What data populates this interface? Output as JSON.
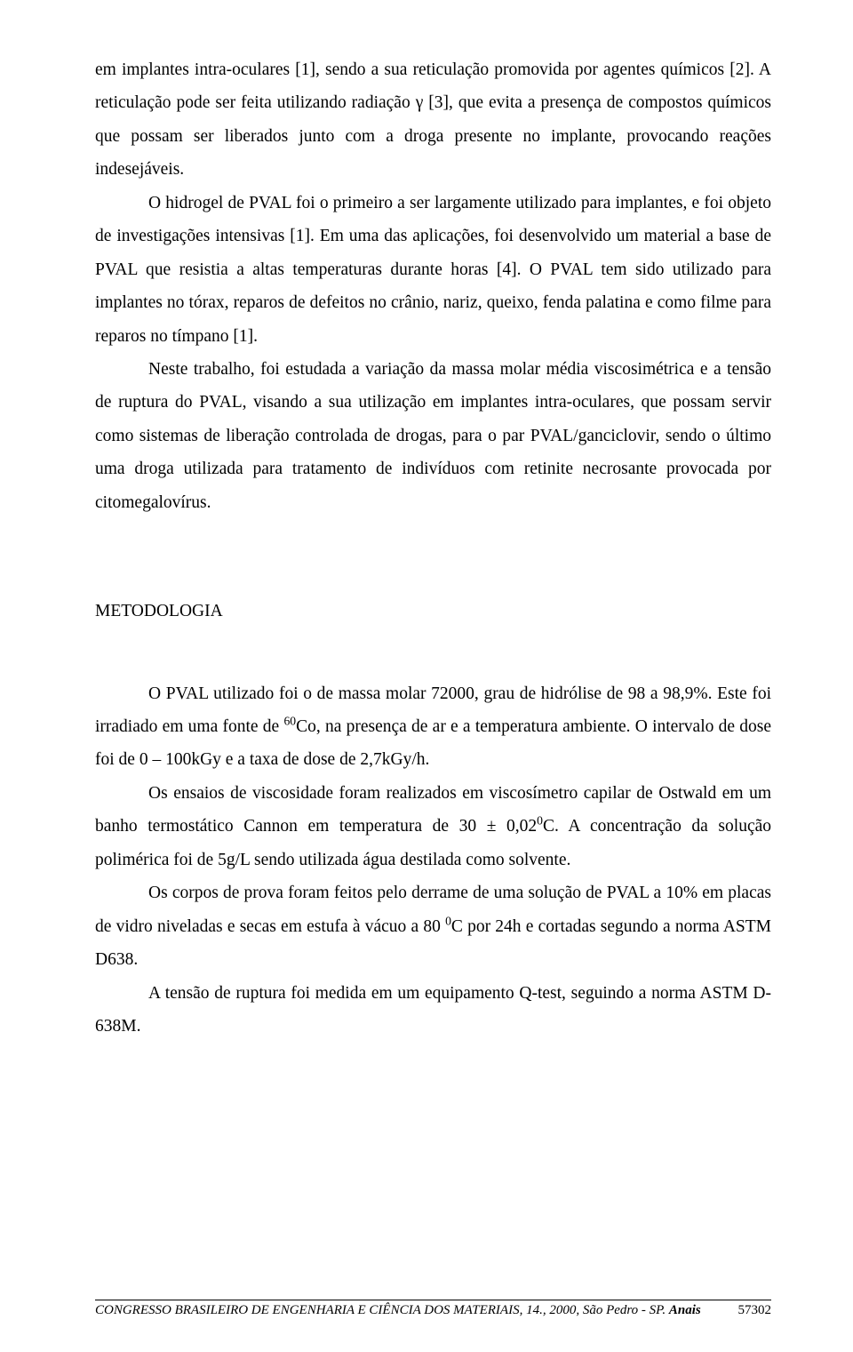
{
  "paragraphs": {
    "p1": "em implantes intra-oculares [1], sendo a sua reticulação promovida por agentes químicos [2]. A reticulação pode ser feita utilizando radiação γ [3], que evita a presença de compostos químicos que possam ser liberados junto com a droga presente no implante, provocando reações indesejáveis.",
    "p2": "O hidrogel de PVAL foi o primeiro a ser largamente utilizado para implantes, e foi objeto de investigações intensivas [1]. Em uma das aplicações, foi desenvolvido um material a base de PVAL que resistia a altas temperaturas durante horas [4]. O PVAL tem sido utilizado para implantes no tórax, reparos de defeitos no crânio, nariz, queixo, fenda palatina e como filme para reparos no tímpano [1].",
    "p3": "Neste trabalho, foi estudada a variação da massa molar média viscosimétrica e a tensão de ruptura do PVAL, visando a sua utilização em implantes intra-oculares, que possam servir como sistemas de liberação controlada de drogas, para o par PVAL/ganciclovir, sendo o último uma droga utilizada para tratamento de indivíduos com retinite necrosante provocada por citomegalovírus.",
    "heading": "METODOLOGIA",
    "p4a": "O PVAL utilizado foi o de massa molar 72000, grau de hidrólise de 98 a 98,9%. Este foi irradiado em uma fonte de ",
    "p4b": "Co, na presença de ar e a temperatura ambiente. O intervalo de dose foi de 0 – 100kGy e a taxa de dose de 2,7kGy/h.",
    "p4sup": "60",
    "p5a": "Os ensaios de viscosidade foram realizados em viscosímetro capilar de Ostwald em um banho termostático Cannon em temperatura de 30 ± 0,02",
    "p5b": "C. A concentração da solução polimérica foi de 5g/L sendo utilizada água destilada como solvente.",
    "p5sup": "0",
    "p6a": "Os corpos de prova foram feitos pelo derrame de uma solução de PVAL a 10% em placas de vidro niveladas e secas em estufa à vácuo a 80 ",
    "p6b": "C por 24h e cortadas segundo a norma ASTM D638.",
    "p6sup": "0",
    "p7": "A tensão de ruptura foi medida em um equipamento Q-test, seguindo a norma ASTM D-638M."
  },
  "footer": {
    "conference": "CONGRESSO BRASILEIRO DE ENGENHARIA E CIÊNCIA DOS MATERIAIS, 14., 2000, São Pedro - SP.  ",
    "anais": "Anais",
    "page": "57302"
  }
}
